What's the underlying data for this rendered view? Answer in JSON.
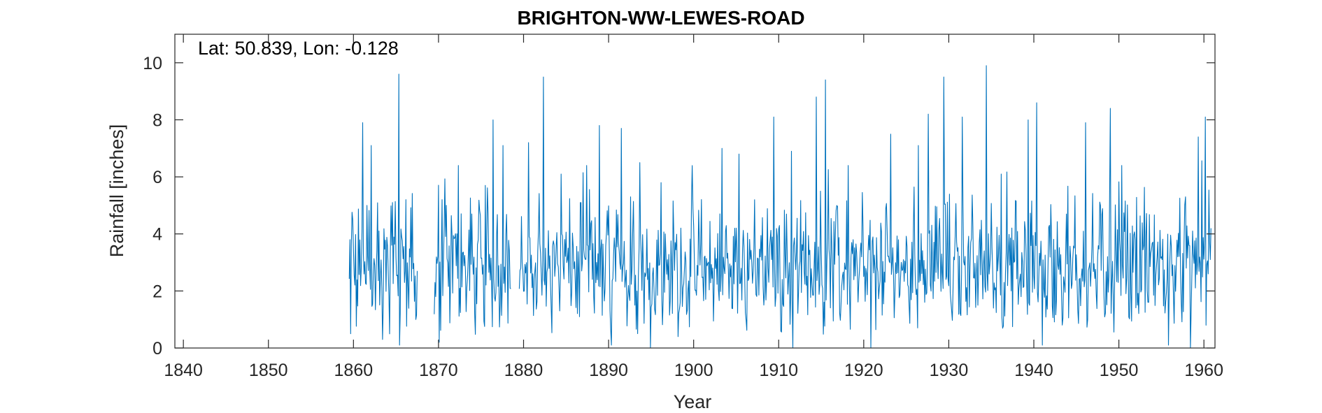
{
  "chart_data": {
    "type": "line",
    "title": "BRIGHTON-WW-LEWES-ROAD",
    "annotation": "Lat: 50.839, Lon: -0.128",
    "xlabel": "Year",
    "ylabel": "Rainfall [inches]",
    "xlim": [
      1839,
      1961.3
    ],
    "ylim": [
      0,
      11
    ],
    "xticks": [
      1840,
      1850,
      1860,
      1870,
      1880,
      1890,
      1900,
      1910,
      1920,
      1930,
      1940,
      1950,
      1960
    ],
    "yticks": [
      0,
      2,
      4,
      6,
      8,
      10
    ],
    "grid": false,
    "line_color": "#0072BD",
    "series": [
      {
        "segments": [
          {
            "start_year": 1859.5,
            "end_year": 1867.5
          },
          {
            "start_year": 1869.5,
            "end_year": 1878.5
          },
          {
            "start_year": 1879.5,
            "end_year": 1960.9
          }
        ],
        "highlights": [
          [
            1859.6,
            3.8
          ],
          [
            1859.7,
            0.5
          ],
          [
            1859.9,
            4.5
          ],
          [
            1861.1,
            7.9
          ],
          [
            1861.6,
            5.0
          ],
          [
            1862.1,
            7.1
          ],
          [
            1863.4,
            0.3
          ],
          [
            1864.6,
            5.1
          ],
          [
            1865.3,
            9.6
          ],
          [
            1865.4,
            0.1
          ],
          [
            1866.2,
            5.2
          ],
          [
            1867.3,
            1.0
          ],
          [
            1869.7,
            1.8
          ],
          [
            1870.1,
            0.2
          ],
          [
            1870.4,
            5.2
          ],
          [
            1872.3,
            6.4
          ],
          [
            1875.5,
            5.7
          ],
          [
            1876.4,
            8.0
          ],
          [
            1877.6,
            7.1
          ],
          [
            1878.4,
            2.1
          ],
          [
            1879.8,
            3.0
          ],
          [
            1880.6,
            7.2
          ],
          [
            1882.3,
            9.5
          ],
          [
            1884.4,
            6.1
          ],
          [
            1887.4,
            6.4
          ],
          [
            1888.9,
            7.8
          ],
          [
            1890.3,
            0.1
          ],
          [
            1891.5,
            7.7
          ],
          [
            1892.6,
            5.3
          ],
          [
            1893.7,
            6.5
          ],
          [
            1894.9,
            0.0
          ],
          [
            1896.2,
            5.8
          ],
          [
            1898.2,
            0.4
          ],
          [
            1903.3,
            7.0
          ],
          [
            1905.3,
            6.8
          ],
          [
            1909.4,
            8.1
          ],
          [
            1911.5,
            6.9
          ],
          [
            1911.7,
            0.0
          ],
          [
            1914.4,
            8.8
          ],
          [
            1915.5,
            9.4
          ],
          [
            1918.2,
            6.4
          ],
          [
            1920.8,
            0.0
          ],
          [
            1923.2,
            7.5
          ],
          [
            1926.4,
            7.1
          ],
          [
            1927.6,
            8.2
          ],
          [
            1929.4,
            9.5
          ],
          [
            1931.6,
            8.1
          ],
          [
            1934.4,
            9.9
          ],
          [
            1936.2,
            6.1
          ],
          [
            1939.3,
            8.0
          ],
          [
            1940.3,
            8.6
          ],
          [
            1941.0,
            0.1
          ],
          [
            1946.1,
            7.9
          ],
          [
            1949.0,
            8.4
          ],
          [
            1950.3,
            6.4
          ],
          [
            1955.8,
            0.1
          ],
          [
            1957.8,
            5.3
          ],
          [
            1958.4,
            0.0
          ],
          [
            1959.3,
            7.4
          ],
          [
            1960.2,
            8.1
          ],
          [
            1960.8,
            4.2
          ]
        ]
      }
    ]
  }
}
